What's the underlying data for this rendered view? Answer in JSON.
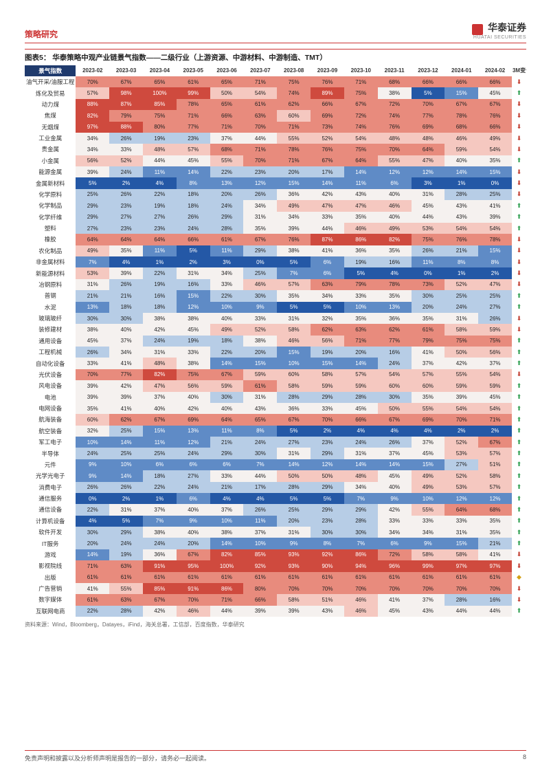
{
  "header": {
    "section": "策略研究",
    "brand": "华泰证券",
    "brand_sub": "HUATAI SECURITIES"
  },
  "figure": {
    "title": "图表5： 华泰策略中观产业链景气指数——二级行业（上游资源、中游材料、中游制造、TMT）",
    "corner_label": "景气指数",
    "columns": [
      "2023-02",
      "2023-03",
      "2023-04",
      "2023-05",
      "2023-06",
      "2023-07",
      "2023-08",
      "2023-09",
      "2023-10",
      "2023-11",
      "2023-12",
      "2024-01",
      "2024-02"
    ],
    "trend_header": "3M变化",
    "color_scale": {
      "low": "#2458a6",
      "low_mid": "#5f8bc6",
      "mid_low": "#b7cde6",
      "mid": "#f5f1ef",
      "mid_high": "#f5c8c0",
      "high_mid": "#e88b7d",
      "high": "#cf4a3e"
    },
    "trend_colors": {
      "up": "#2e9e4f",
      "down": "#c0392b",
      "flat": "#d4a017"
    },
    "rows": [
      {
        "label": "油气开采/油服工程",
        "vals": [
          70,
          67,
          65,
          61,
          65,
          71,
          75,
          76,
          71,
          68,
          66,
          66,
          66
        ],
        "trend": "down"
      },
      {
        "label": "炼化及贸易",
        "vals": [
          57,
          98,
          100,
          99,
          50,
          54,
          74,
          89,
          75,
          38,
          5,
          15,
          45
        ],
        "trend": "up"
      },
      {
        "label": "动力煤",
        "vals": [
          88,
          87,
          85,
          78,
          65,
          61,
          62,
          66,
          67,
          72,
          70,
          67,
          67
        ],
        "trend": "down"
      },
      {
        "label": "焦煤",
        "vals": [
          82,
          79,
          75,
          71,
          66,
          63,
          60,
          69,
          72,
          74,
          77,
          78,
          76
        ],
        "trend": "down"
      },
      {
        "label": "无烟煤",
        "vals": [
          97,
          88,
          80,
          77,
          71,
          70,
          71,
          73,
          74,
          76,
          69,
          68,
          66
        ],
        "trend": "down"
      },
      {
        "label": "工业金属",
        "vals": [
          34,
          26,
          19,
          23,
          37,
          44,
          55,
          52,
          54,
          48,
          48,
          46,
          49
        ],
        "trend": "down"
      },
      {
        "label": "贵金属",
        "vals": [
          34,
          33,
          48,
          57,
          68,
          71,
          78,
          76,
          75,
          70,
          64,
          59,
          54
        ],
        "trend": "down"
      },
      {
        "label": "小金属",
        "vals": [
          56,
          52,
          44,
          45,
          55,
          70,
          71,
          67,
          64,
          55,
          47,
          40,
          35
        ],
        "trend": "up"
      },
      {
        "label": "能源金属",
        "vals": [
          39,
          24,
          11,
          14,
          22,
          23,
          20,
          17,
          14,
          12,
          12,
          14,
          15
        ],
        "trend": "down"
      },
      {
        "label": "金属新材料",
        "vals": [
          5,
          2,
          4,
          8,
          13,
          12,
          15,
          14,
          11,
          6,
          3,
          1,
          0
        ],
        "trend": "down"
      },
      {
        "label": "化学原料",
        "vals": [
          25,
          26,
          22,
          18,
          20,
          26,
          36,
          42,
          43,
          40,
          31,
          28,
          25
        ],
        "trend": "down"
      },
      {
        "label": "化学制品",
        "vals": [
          29,
          23,
          19,
          18,
          24,
          34,
          49,
          47,
          47,
          46,
          45,
          43,
          41
        ],
        "trend": "up"
      },
      {
        "label": "化学纤维",
        "vals": [
          29,
          27,
          27,
          26,
          29,
          31,
          34,
          33,
          35,
          40,
          44,
          43,
          39
        ],
        "trend": "up"
      },
      {
        "label": "塑料",
        "vals": [
          27,
          23,
          23,
          24,
          28,
          35,
          39,
          44,
          46,
          49,
          53,
          54,
          54
        ],
        "trend": "up"
      },
      {
        "label": "橡胶",
        "vals": [
          64,
          64,
          64,
          66,
          61,
          67,
          76,
          87,
          86,
          82,
          75,
          76,
          78
        ],
        "trend": "down"
      },
      {
        "label": "农化制品",
        "vals": [
          49,
          35,
          11,
          5,
          11,
          29,
          38,
          41,
          36,
          35,
          26,
          21,
          15
        ],
        "trend": "down"
      },
      {
        "label": "非金属材料",
        "vals": [
          7,
          4,
          1,
          2,
          3,
          0,
          5,
          6,
          19,
          16,
          11,
          8,
          8
        ],
        "trend": "down"
      },
      {
        "label": "新能源材料",
        "vals": [
          53,
          39,
          22,
          31,
          34,
          25,
          7,
          6,
          5,
          4,
          0,
          1,
          2
        ],
        "trend": "down"
      },
      {
        "label": "冶钢原料",
        "vals": [
          31,
          26,
          19,
          16,
          33,
          46,
          57,
          63,
          79,
          78,
          73,
          52,
          47
        ],
        "trend": "down"
      },
      {
        "label": "普钢",
        "vals": [
          21,
          21,
          16,
          15,
          22,
          30,
          35,
          34,
          33,
          35,
          30,
          25,
          25
        ],
        "trend": "up"
      },
      {
        "label": "水泥",
        "vals": [
          13,
          18,
          18,
          12,
          10,
          9,
          5,
          5,
          10,
          13,
          20,
          24,
          27
        ],
        "trend": "up"
      },
      {
        "label": "玻璃玻纤",
        "vals": [
          30,
          30,
          38,
          38,
          40,
          33,
          31,
          32,
          35,
          36,
          35,
          31,
          26
        ],
        "trend": "down"
      },
      {
        "label": "装修建材",
        "vals": [
          38,
          40,
          42,
          45,
          49,
          52,
          58,
          62,
          63,
          62,
          61,
          58,
          59
        ],
        "trend": "down"
      },
      {
        "label": "通用设备",
        "vals": [
          45,
          37,
          24,
          19,
          18,
          38,
          46,
          56,
          71,
          77,
          79,
          75,
          75
        ],
        "trend": "up"
      },
      {
        "label": "工程机械",
        "vals": [
          26,
          34,
          31,
          33,
          22,
          20,
          15,
          19,
          20,
          16,
          41,
          50,
          56
        ],
        "trend": "up"
      },
      {
        "label": "自动化设备",
        "vals": [
          33,
          41,
          48,
          38,
          14,
          15,
          10,
          15,
          14,
          24,
          37,
          42,
          37
        ],
        "trend": "up"
      },
      {
        "label": "光伏设备",
        "vals": [
          70,
          77,
          82,
          75,
          67,
          59,
          60,
          58,
          57,
          54,
          57,
          55,
          54
        ],
        "trend": "down"
      },
      {
        "label": "风电设备",
        "vals": [
          39,
          42,
          47,
          56,
          59,
          61,
          58,
          59,
          59,
          60,
          60,
          59,
          59
        ],
        "trend": "up"
      },
      {
        "label": "电池",
        "vals": [
          39,
          39,
          37,
          40,
          30,
          31,
          28,
          29,
          28,
          30,
          35,
          39,
          45
        ],
        "trend": "up"
      },
      {
        "label": "电网设备",
        "vals": [
          35,
          41,
          40,
          42,
          40,
          43,
          36,
          33,
          45,
          50,
          55,
          54,
          54
        ],
        "trend": "up"
      },
      {
        "label": "航海装备",
        "vals": [
          60,
          62,
          67,
          69,
          64,
          65,
          67,
          70,
          66,
          67,
          69,
          70,
          71
        ],
        "trend": "up"
      },
      {
        "label": "航空装备",
        "vals": [
          32,
          25,
          15,
          13,
          11,
          8,
          5,
          2,
          4,
          4,
          4,
          2,
          2
        ],
        "trend": "up"
      },
      {
        "label": "军工电子",
        "vals": [
          10,
          14,
          11,
          12,
          21,
          24,
          27,
          23,
          24,
          26,
          37,
          52,
          67
        ],
        "trend": "up"
      },
      {
        "label": "半导体",
        "vals": [
          24,
          25,
          25,
          24,
          29,
          30,
          31,
          29,
          31,
          37,
          45,
          53,
          57
        ],
        "trend": "up"
      },
      {
        "label": "元件",
        "vals": [
          9,
          10,
          6,
          6,
          6,
          7,
          14,
          12,
          14,
          14,
          15,
          27,
          51
        ],
        "trend": "up"
      },
      {
        "label": "光学光电子",
        "vals": [
          9,
          14,
          18,
          27,
          33,
          44,
          50,
          50,
          48,
          45,
          49,
          52,
          58
        ],
        "trend": "up"
      },
      {
        "label": "消费电子",
        "vals": [
          26,
          26,
          22,
          24,
          21,
          17,
          28,
          29,
          34,
          40,
          49,
          53,
          57
        ],
        "trend": "up"
      },
      {
        "label": "通信服务",
        "vals": [
          0,
          2,
          1,
          6,
          4,
          4,
          5,
          5,
          7,
          9,
          10,
          12,
          12
        ],
        "trend": "up"
      },
      {
        "label": "通信设备",
        "vals": [
          22,
          31,
          37,
          40,
          37,
          26,
          25,
          29,
          29,
          42,
          55,
          64,
          68
        ],
        "trend": "up"
      },
      {
        "label": "计算机设备",
        "vals": [
          4,
          5,
          7,
          9,
          10,
          11,
          20,
          23,
          28,
          33,
          33,
          33,
          35
        ],
        "trend": "up"
      },
      {
        "label": "软件开发",
        "vals": [
          30,
          29,
          38,
          40,
          38,
          37,
          31,
          30,
          30,
          34,
          34,
          31,
          35
        ],
        "trend": "up"
      },
      {
        "label": "IT服务",
        "vals": [
          20,
          24,
          24,
          20,
          14,
          10,
          9,
          8,
          7,
          6,
          9,
          15,
          21
        ],
        "trend": "up"
      },
      {
        "label": "游戏",
        "vals": [
          14,
          19,
          36,
          67,
          82,
          85,
          93,
          92,
          86,
          72,
          58,
          58,
          41
        ],
        "trend": "down"
      },
      {
        "label": "影视院线",
        "vals": [
          71,
          63,
          91,
          95,
          100,
          92,
          93,
          90,
          94,
          96,
          99,
          97,
          97
        ],
        "trend": "down"
      },
      {
        "label": "出版",
        "vals": [
          61,
          61,
          61,
          61,
          61,
          61,
          61,
          61,
          61,
          61,
          61,
          61,
          61
        ],
        "trend": "flat"
      },
      {
        "label": "广告营销",
        "vals": [
          41,
          55,
          85,
          91,
          86,
          80,
          70,
          70,
          70,
          70,
          70,
          70,
          70
        ],
        "trend": "down"
      },
      {
        "label": "数字媒体",
        "vals": [
          61,
          63,
          67,
          70,
          71,
          66,
          58,
          51,
          46,
          41,
          37,
          28,
          16
        ],
        "trend": "down"
      },
      {
        "label": "互联网电商",
        "vals": [
          22,
          28,
          42,
          46,
          44,
          39,
          39,
          43,
          46,
          45,
          43,
          44,
          44
        ],
        "trend": "up"
      }
    ]
  },
  "source": "资料来源：Wind，Bloomberg，Datayes，iFind，海关总署，工信部，百度指数，华泰研究",
  "footer": {
    "disclaimer": "免责声明和披露以及分析师声明是报告的一部分，请务必一起阅读。",
    "page_num": "8"
  }
}
